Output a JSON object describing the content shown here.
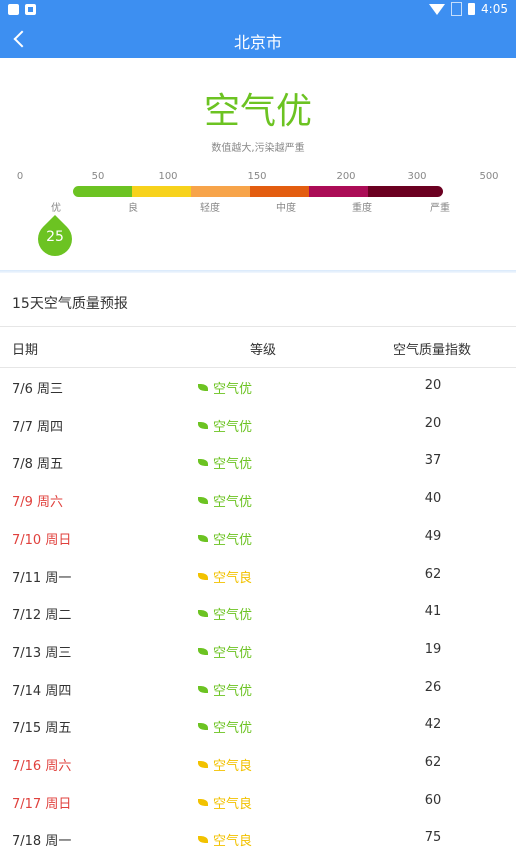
{
  "status_bar": {
    "time": "4:05"
  },
  "header": {
    "title": "北京市"
  },
  "current": {
    "level": "空气优",
    "hint": "数值越大,污染越严重",
    "value": "25",
    "level_color": "#6cc322"
  },
  "scale": {
    "ticks": [
      "0",
      "50",
      "100",
      "150",
      "200",
      "300",
      "500"
    ],
    "levels": [
      "优",
      "良",
      "轻度",
      "中度",
      "重度",
      "严重"
    ],
    "colors": [
      "#6cc322",
      "#f7d21c",
      "#f7a44a",
      "#e35d10",
      "#ab0c56",
      "#6b0021"
    ]
  },
  "forecast": {
    "title": "15天空气质量预报",
    "columns": [
      "日期",
      "等级",
      "空气质量指数"
    ],
    "rows": [
      {
        "date": "7/6 周三",
        "level": "空气优",
        "aqi": "20",
        "weekend": false,
        "good": true
      },
      {
        "date": "7/7 周四",
        "level": "空气优",
        "aqi": "20",
        "weekend": false,
        "good": true
      },
      {
        "date": "7/8 周五",
        "level": "空气优",
        "aqi": "37",
        "weekend": false,
        "good": true
      },
      {
        "date": "7/9 周六",
        "level": "空气优",
        "aqi": "40",
        "weekend": true,
        "good": true
      },
      {
        "date": "7/10 周日",
        "level": "空气优",
        "aqi": "49",
        "weekend": true,
        "good": true
      },
      {
        "date": "7/11 周一",
        "level": "空气良",
        "aqi": "62",
        "weekend": false,
        "good": false
      },
      {
        "date": "7/12 周二",
        "level": "空气优",
        "aqi": "41",
        "weekend": false,
        "good": true
      },
      {
        "date": "7/13 周三",
        "level": "空气优",
        "aqi": "19",
        "weekend": false,
        "good": true
      },
      {
        "date": "7/14 周四",
        "level": "空气优",
        "aqi": "26",
        "weekend": false,
        "good": true
      },
      {
        "date": "7/15 周五",
        "level": "空气优",
        "aqi": "42",
        "weekend": false,
        "good": true
      },
      {
        "date": "7/16 周六",
        "level": "空气良",
        "aqi": "62",
        "weekend": true,
        "good": false
      },
      {
        "date": "7/17 周日",
        "level": "空气良",
        "aqi": "60",
        "weekend": true,
        "good": false
      },
      {
        "date": "7/18 周一",
        "level": "空气良",
        "aqi": "75",
        "weekend": false,
        "good": false
      }
    ]
  },
  "colors": {
    "app_bar": "#3d8ff1",
    "good": "#6cc322",
    "moderate": "#f2c200",
    "weekend_text": "#e0413d",
    "normal_text": "#333333"
  }
}
